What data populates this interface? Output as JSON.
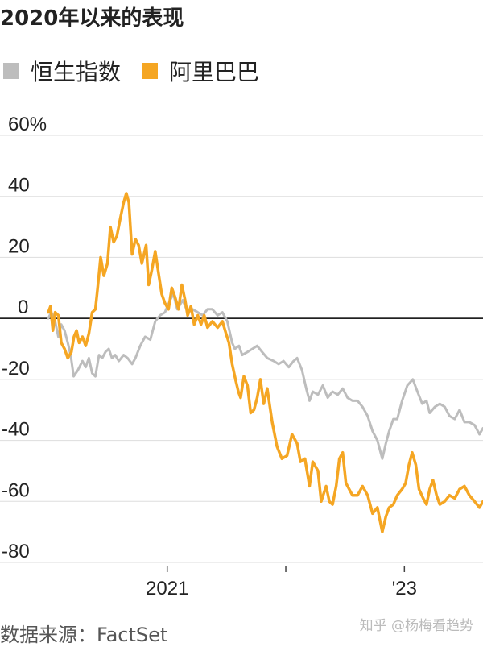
{
  "title": "2020年以来的表现",
  "source": "数据来源：FactSet",
  "watermark": "知乎 @杨梅看趋势",
  "legend": [
    {
      "name": "恒生指数",
      "color": "#bdbdbd"
    },
    {
      "name": "阿里巴巴",
      "color": "#f5a623"
    }
  ],
  "chart_data": {
    "type": "line",
    "title": "2020年以来的表现",
    "xlabel": "",
    "ylabel": "",
    "y_ticks": [
      60,
      40,
      20,
      0,
      -20,
      -40,
      -60,
      -80
    ],
    "y_tick_labels": [
      "60%",
      "40",
      "20",
      "0",
      "-20",
      "-40",
      "-60",
      "-80"
    ],
    "ylim": [
      -80,
      60
    ],
    "x_ticks": [
      {
        "label": "2021",
        "x": "2021-01-01"
      },
      {
        "label": "",
        "x": "2022-01-01"
      },
      {
        "label": "'23",
        "x": "2023-01-01"
      }
    ],
    "xlim": [
      "2020-01-01",
      "2023-08-31"
    ],
    "zero_line": true,
    "grid": "horizontal",
    "series": [
      {
        "name": "恒生指数",
        "color": "#bdbdbd",
        "points": [
          [
            "2020-01-01",
            0
          ],
          [
            "2020-01-10",
            2
          ],
          [
            "2020-01-20",
            0
          ],
          [
            "2020-02-01",
            -6
          ],
          [
            "2020-02-10",
            -2
          ],
          [
            "2020-02-20",
            -4
          ],
          [
            "2020-03-01",
            -8
          ],
          [
            "2020-03-10",
            -12
          ],
          [
            "2020-03-19",
            -19
          ],
          [
            "2020-04-01",
            -17
          ],
          [
            "2020-04-15",
            -14
          ],
          [
            "2020-04-25",
            -16
          ],
          [
            "2020-05-05",
            -13
          ],
          [
            "2020-05-15",
            -18
          ],
          [
            "2020-05-25",
            -19
          ],
          [
            "2020-06-05",
            -12
          ],
          [
            "2020-06-15",
            -13
          ],
          [
            "2020-06-25",
            -11
          ],
          [
            "2020-07-05",
            -10
          ],
          [
            "2020-07-15",
            -13
          ],
          [
            "2020-07-25",
            -12
          ],
          [
            "2020-08-05",
            -14
          ],
          [
            "2020-08-20",
            -12
          ],
          [
            "2020-09-01",
            -13
          ],
          [
            "2020-09-15",
            -15
          ],
          [
            "2020-09-25",
            -13
          ],
          [
            "2020-10-10",
            -9
          ],
          [
            "2020-10-25",
            -6
          ],
          [
            "2020-11-10",
            -7
          ],
          [
            "2020-11-25",
            -1
          ],
          [
            "2020-12-10",
            1
          ],
          [
            "2020-12-25",
            2
          ],
          [
            "2021-01-10",
            6
          ],
          [
            "2021-01-20",
            8
          ],
          [
            "2021-02-01",
            3
          ],
          [
            "2021-02-18",
            6
          ],
          [
            "2021-03-05",
            2
          ],
          [
            "2021-03-20",
            3
          ],
          [
            "2021-04-05",
            2
          ],
          [
            "2021-04-20",
            1
          ],
          [
            "2021-05-05",
            3
          ],
          [
            "2021-05-20",
            3
          ],
          [
            "2021-06-05",
            1
          ],
          [
            "2021-06-20",
            2
          ],
          [
            "2021-07-05",
            -1
          ],
          [
            "2021-07-20",
            -8
          ],
          [
            "2021-07-28",
            -10
          ],
          [
            "2021-08-10",
            -9
          ],
          [
            "2021-08-20",
            -12
          ],
          [
            "2021-09-05",
            -11
          ],
          [
            "2021-09-20",
            -10
          ],
          [
            "2021-10-05",
            -9
          ],
          [
            "2021-10-20",
            -11
          ],
          [
            "2021-11-05",
            -13
          ],
          [
            "2021-11-25",
            -14
          ],
          [
            "2021-12-10",
            -15
          ],
          [
            "2021-12-25",
            -14
          ],
          [
            "2022-01-10",
            -16
          ],
          [
            "2022-01-25",
            -14
          ],
          [
            "2022-02-05",
            -13
          ],
          [
            "2022-02-20",
            -17
          ],
          [
            "2022-03-05",
            -23
          ],
          [
            "2022-03-15",
            -27
          ],
          [
            "2022-03-25",
            -24
          ],
          [
            "2022-04-10",
            -25
          ],
          [
            "2022-04-25",
            -22
          ],
          [
            "2022-05-10",
            -26
          ],
          [
            "2022-05-25",
            -24
          ],
          [
            "2022-06-10",
            -25
          ],
          [
            "2022-06-25",
            -23
          ],
          [
            "2022-07-10",
            -26
          ],
          [
            "2022-07-25",
            -27
          ],
          [
            "2022-08-10",
            -27
          ],
          [
            "2022-08-25",
            -29
          ],
          [
            "2022-09-10",
            -32
          ],
          [
            "2022-09-25",
            -37
          ],
          [
            "2022-10-10",
            -40
          ],
          [
            "2022-10-25",
            -46
          ],
          [
            "2022-11-05",
            -41
          ],
          [
            "2022-11-15",
            -37
          ],
          [
            "2022-11-28",
            -33
          ],
          [
            "2022-12-10",
            -33
          ],
          [
            "2022-12-25",
            -27
          ],
          [
            "2023-01-10",
            -22
          ],
          [
            "2023-01-27",
            -20
          ],
          [
            "2023-02-10",
            -24
          ],
          [
            "2023-02-25",
            -28
          ],
          [
            "2023-03-10",
            -27
          ],
          [
            "2023-03-20",
            -31
          ],
          [
            "2023-04-05",
            -29
          ],
          [
            "2023-04-20",
            -28
          ],
          [
            "2023-05-05",
            -29
          ],
          [
            "2023-05-20",
            -32
          ],
          [
            "2023-06-05",
            -33
          ],
          [
            "2023-06-20",
            -30
          ],
          [
            "2023-07-05",
            -34
          ],
          [
            "2023-07-20",
            -34
          ],
          [
            "2023-08-05",
            -35
          ],
          [
            "2023-08-20",
            -38
          ],
          [
            "2023-08-31",
            -36
          ]
        ]
      },
      {
        "name": "阿里巴巴",
        "color": "#f5a623",
        "points": [
          [
            "2020-01-01",
            2
          ],
          [
            "2020-01-08",
            4
          ],
          [
            "2020-01-15",
            -4
          ],
          [
            "2020-01-22",
            2
          ],
          [
            "2020-02-01",
            1
          ],
          [
            "2020-02-10",
            -8
          ],
          [
            "2020-02-20",
            -10
          ],
          [
            "2020-03-01",
            -13
          ],
          [
            "2020-03-12",
            -11
          ],
          [
            "2020-03-20",
            -6
          ],
          [
            "2020-03-28",
            -4
          ],
          [
            "2020-04-05",
            -8
          ],
          [
            "2020-04-15",
            -6
          ],
          [
            "2020-04-25",
            -9
          ],
          [
            "2020-05-05",
            -5
          ],
          [
            "2020-05-15",
            2
          ],
          [
            "2020-05-25",
            3
          ],
          [
            "2020-06-01",
            10
          ],
          [
            "2020-06-10",
            20
          ],
          [
            "2020-06-20",
            14
          ],
          [
            "2020-07-01",
            18
          ],
          [
            "2020-07-10",
            30
          ],
          [
            "2020-07-20",
            25
          ],
          [
            "2020-07-30",
            27
          ],
          [
            "2020-08-10",
            33
          ],
          [
            "2020-08-20",
            38
          ],
          [
            "2020-08-28",
            41
          ],
          [
            "2020-09-05",
            38
          ],
          [
            "2020-09-15",
            21
          ],
          [
            "2020-09-25",
            26
          ],
          [
            "2020-10-05",
            24
          ],
          [
            "2020-10-15",
            18
          ],
          [
            "2020-10-28",
            24
          ],
          [
            "2020-11-05",
            11
          ],
          [
            "2020-11-15",
            16
          ],
          [
            "2020-11-25",
            22
          ],
          [
            "2020-12-05",
            15
          ],
          [
            "2020-12-15",
            8
          ],
          [
            "2020-12-25",
            5
          ],
          [
            "2021-01-05",
            3
          ],
          [
            "2021-01-15",
            10
          ],
          [
            "2021-01-25",
            7
          ],
          [
            "2021-02-05",
            3
          ],
          [
            "2021-02-15",
            11
          ],
          [
            "2021-02-25",
            6
          ],
          [
            "2021-03-05",
            1
          ],
          [
            "2021-03-15",
            4
          ],
          [
            "2021-03-25",
            -2
          ],
          [
            "2021-04-05",
            1
          ],
          [
            "2021-04-15",
            -2
          ],
          [
            "2021-04-25",
            1
          ],
          [
            "2021-05-05",
            -3
          ],
          [
            "2021-05-20",
            -1
          ],
          [
            "2021-06-05",
            -3
          ],
          [
            "2021-06-20",
            -1
          ],
          [
            "2021-07-01",
            -5
          ],
          [
            "2021-07-10",
            -8
          ],
          [
            "2021-07-20",
            -15
          ],
          [
            "2021-07-30",
            -20
          ],
          [
            "2021-08-08",
            -24
          ],
          [
            "2021-08-15",
            -26
          ],
          [
            "2021-08-25",
            -19
          ],
          [
            "2021-09-05",
            -22
          ],
          [
            "2021-09-15",
            -31
          ],
          [
            "2021-09-25",
            -30
          ],
          [
            "2021-10-05",
            -26
          ],
          [
            "2021-10-15",
            -20
          ],
          [
            "2021-10-25",
            -28
          ],
          [
            "2021-11-05",
            -23
          ],
          [
            "2021-11-20",
            -34
          ],
          [
            "2021-12-05",
            -42
          ],
          [
            "2021-12-20",
            -46
          ],
          [
            "2022-01-05",
            -45
          ],
          [
            "2022-01-20",
            -38
          ],
          [
            "2022-02-05",
            -41
          ],
          [
            "2022-02-15",
            -47
          ],
          [
            "2022-03-01",
            -46
          ],
          [
            "2022-03-15",
            -55
          ],
          [
            "2022-03-25",
            -47
          ],
          [
            "2022-04-10",
            -50
          ],
          [
            "2022-04-20",
            -60
          ],
          [
            "2022-05-05",
            -55
          ],
          [
            "2022-05-15",
            -60
          ],
          [
            "2022-05-25",
            -61
          ],
          [
            "2022-06-05",
            -55
          ],
          [
            "2022-06-15",
            -46
          ],
          [
            "2022-06-25",
            -44
          ],
          [
            "2022-07-05",
            -54
          ],
          [
            "2022-07-15",
            -56
          ],
          [
            "2022-07-25",
            -58
          ],
          [
            "2022-08-10",
            -58
          ],
          [
            "2022-08-25",
            -55
          ],
          [
            "2022-09-10",
            -58
          ],
          [
            "2022-09-25",
            -64
          ],
          [
            "2022-10-10",
            -62
          ],
          [
            "2022-10-25",
            -70
          ],
          [
            "2022-11-05",
            -65
          ],
          [
            "2022-11-15",
            -62
          ],
          [
            "2022-11-28",
            -61
          ],
          [
            "2022-12-10",
            -58
          ],
          [
            "2022-12-25",
            -56
          ],
          [
            "2023-01-05",
            -54
          ],
          [
            "2023-01-15",
            -48
          ],
          [
            "2023-01-25",
            -44
          ],
          [
            "2023-02-05",
            -48
          ],
          [
            "2023-02-15",
            -56
          ],
          [
            "2023-02-28",
            -59
          ],
          [
            "2023-03-10",
            -61
          ],
          [
            "2023-03-20",
            -56
          ],
          [
            "2023-03-30",
            -53
          ],
          [
            "2023-04-10",
            -58
          ],
          [
            "2023-04-20",
            -61
          ],
          [
            "2023-05-05",
            -60
          ],
          [
            "2023-05-20",
            -58
          ],
          [
            "2023-06-05",
            -59
          ],
          [
            "2023-06-20",
            -56
          ],
          [
            "2023-07-05",
            -55
          ],
          [
            "2023-07-20",
            -58
          ],
          [
            "2023-08-05",
            -60
          ],
          [
            "2023-08-20",
            -62
          ],
          [
            "2023-08-31",
            -60
          ]
        ]
      }
    ]
  }
}
